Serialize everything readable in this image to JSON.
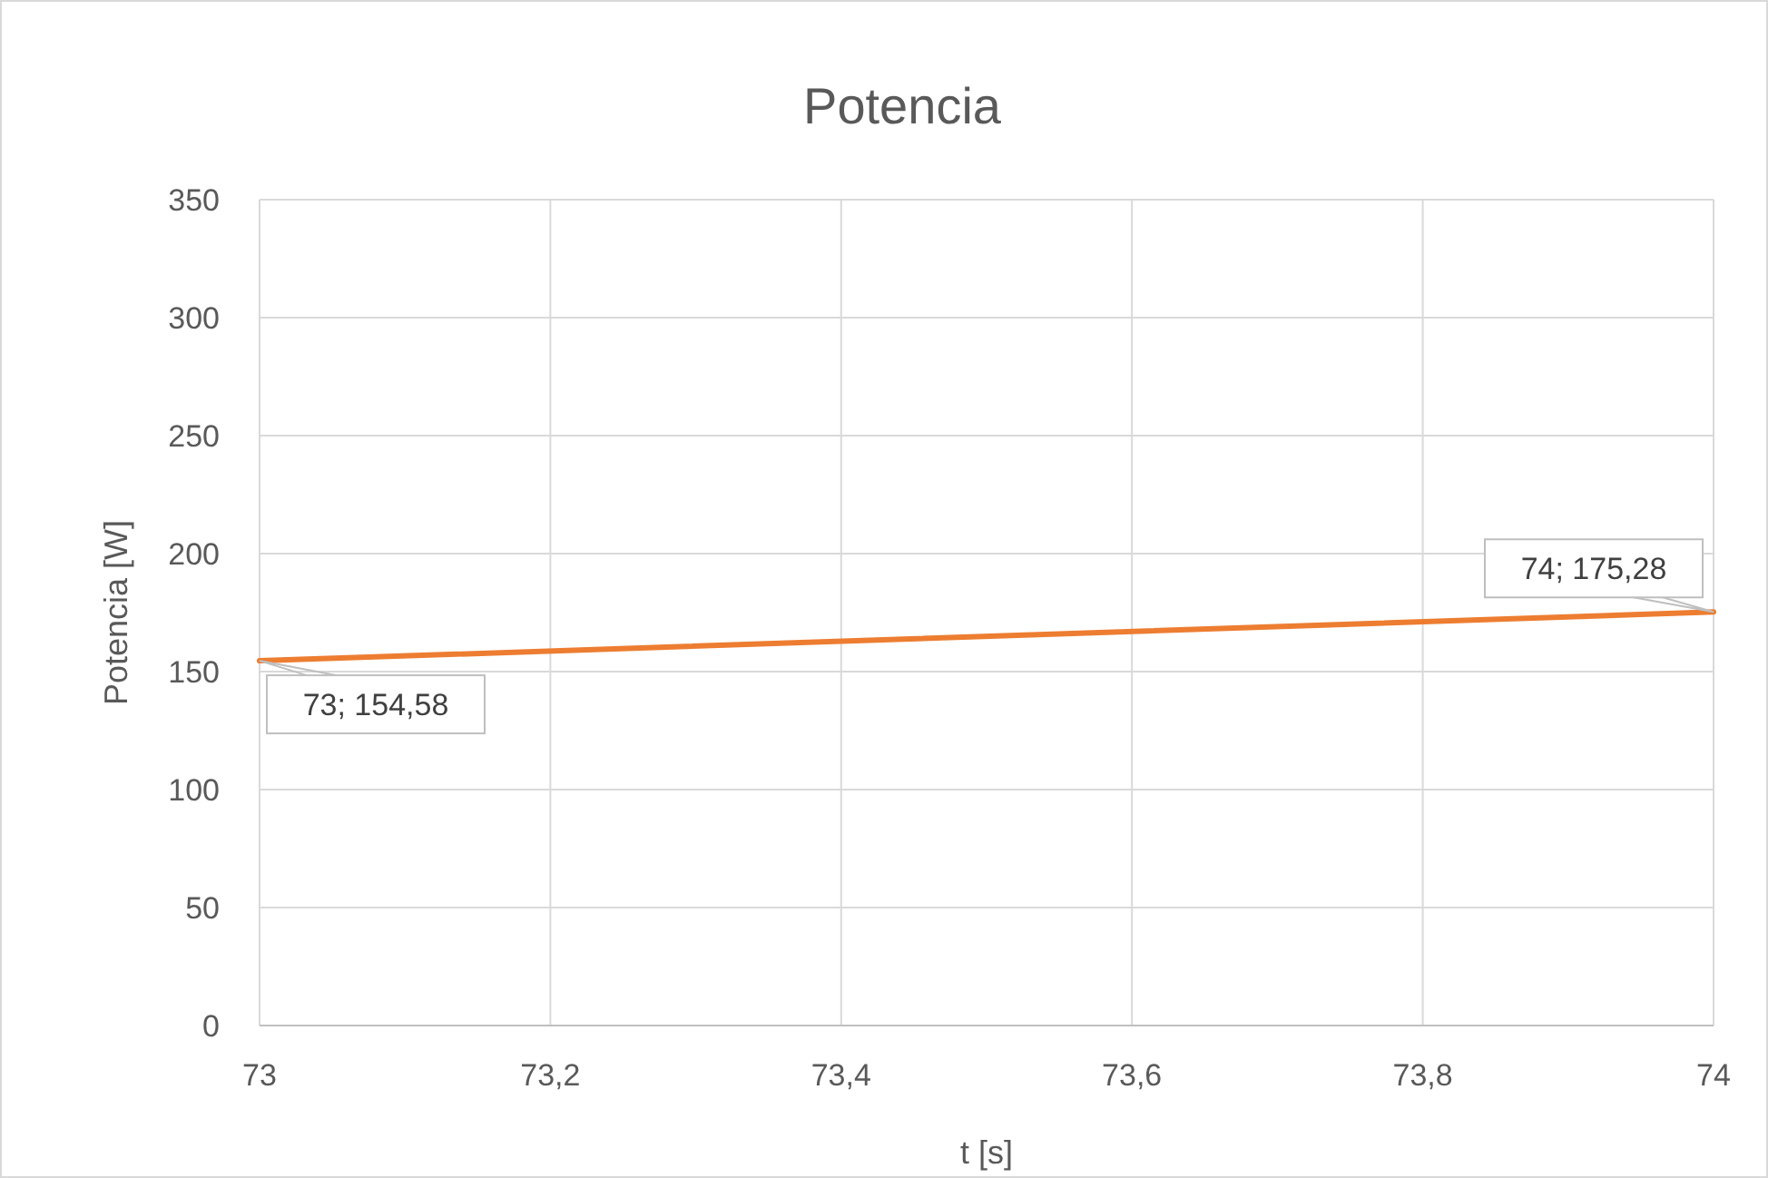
{
  "chart_data": {
    "type": "line",
    "title": "Potencia",
    "xlabel": "t [s]",
    "ylabel": "Potencia [W]",
    "x": [
      73,
      74
    ],
    "series": [
      {
        "color": "#ed7d31",
        "values": [
          154.58,
          175.28
        ],
        "value_labels": [
          "73; 154,58",
          "74; 175,28"
        ]
      }
    ],
    "xlim": [
      73,
      74
    ],
    "xticks": [
      73,
      {
        "value": 73.2,
        "label": "73,2"
      },
      {
        "value": 73.4,
        "label": "73,4"
      },
      {
        "value": 73.6,
        "label": "73,6"
      },
      {
        "value": 73.8,
        "label": "73,8"
      },
      74
    ],
    "ylim": [
      0,
      350
    ],
    "yticks": [
      0,
      50,
      100,
      150,
      200,
      250,
      300,
      350
    ],
    "grid": true,
    "line_style": "solid",
    "marker": "none"
  }
}
